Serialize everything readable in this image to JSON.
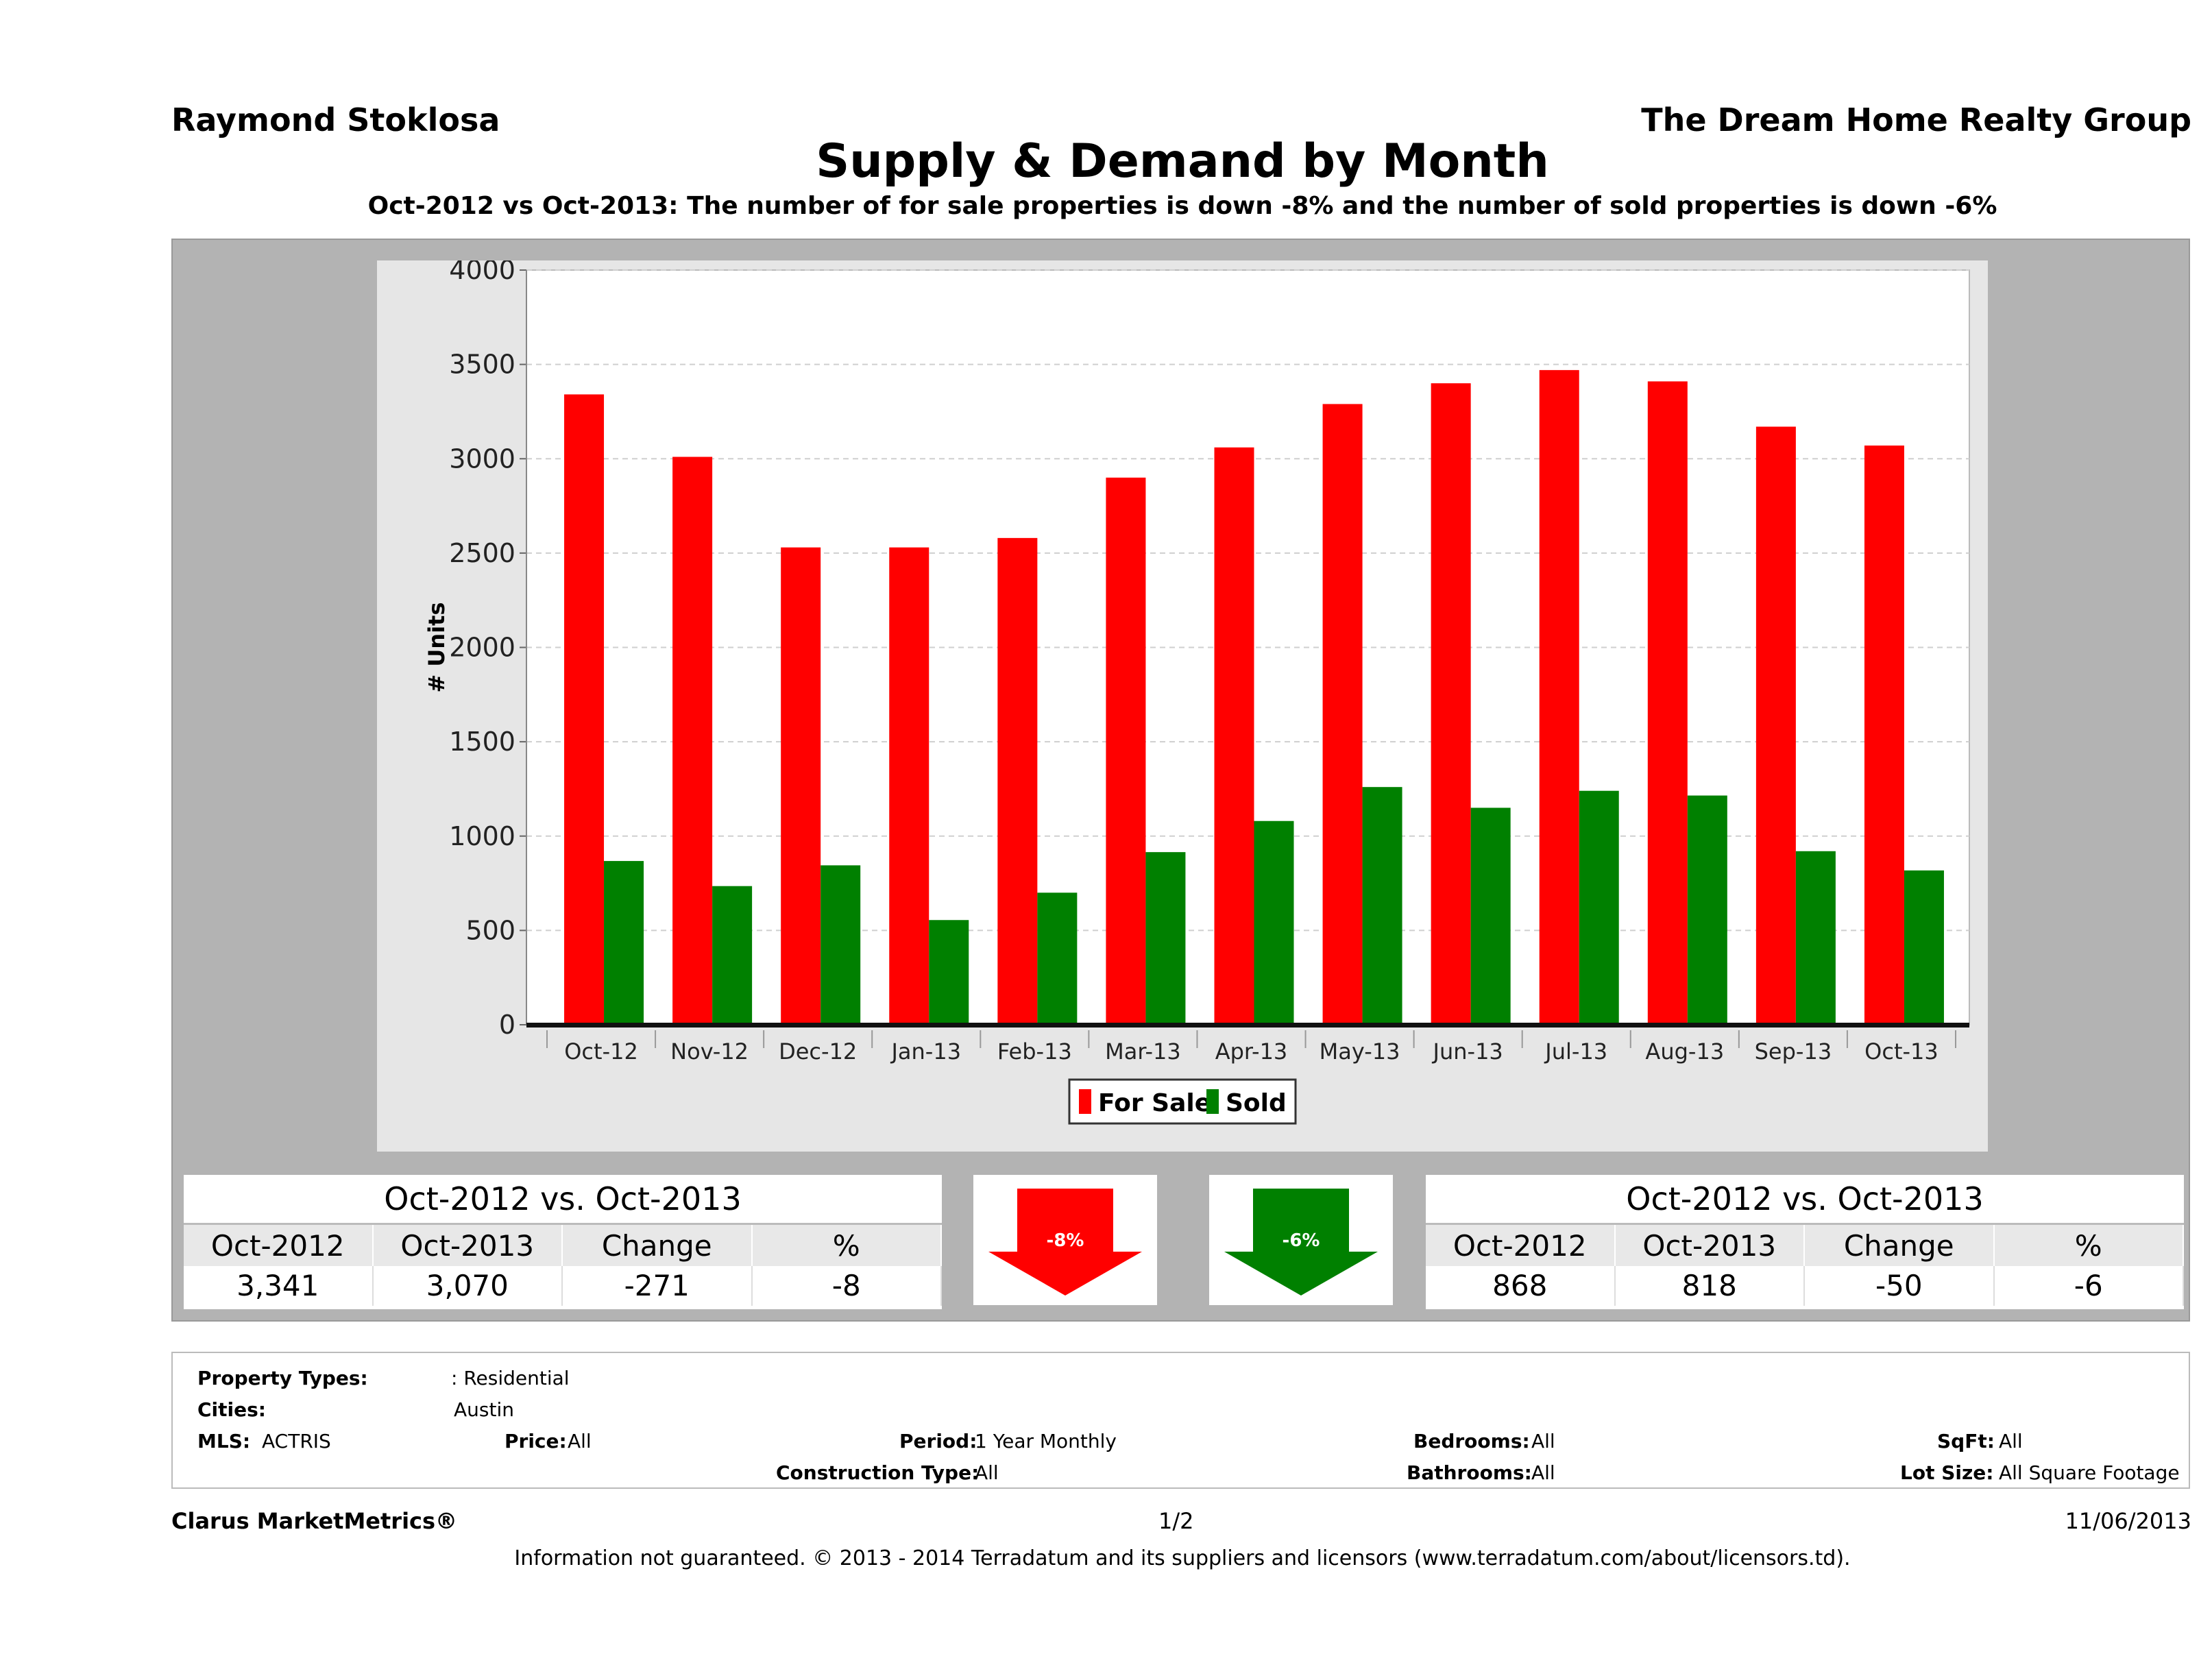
{
  "header": {
    "agent": "Raymond Stoklosa",
    "company": "The Dream Home Realty Group",
    "title": "Supply & Demand by Month",
    "subtitle": "Oct-2012 vs Oct-2013: The number of for sale properties is down -8% and the number of sold properties is down -6%"
  },
  "chart_data": {
    "type": "bar",
    "categories": [
      "Oct-12",
      "Nov-12",
      "Dec-12",
      "Jan-13",
      "Feb-13",
      "Mar-13",
      "Apr-13",
      "May-13",
      "Jun-13",
      "Jul-13",
      "Aug-13",
      "Sep-13",
      "Oct-13"
    ],
    "series": [
      {
        "name": "For Sale",
        "color": "#ff0000",
        "values": [
          3341,
          3010,
          2530,
          2530,
          2580,
          2900,
          3060,
          3290,
          3400,
          3470,
          3410,
          3170,
          3070
        ]
      },
      {
        "name": "Sold",
        "color": "#008000",
        "values": [
          868,
          735,
          845,
          555,
          700,
          915,
          1080,
          1260,
          1150,
          1240,
          1215,
          920,
          818
        ]
      }
    ],
    "ylabel": "# Units",
    "ylim": [
      0,
      4000
    ],
    "yticks": [
      0,
      500,
      1000,
      1500,
      2000,
      2500,
      3000,
      3500,
      4000
    ],
    "grid": true,
    "legend_position": "bottom"
  },
  "stats_left": {
    "header": "Oct-2012 vs. Oct-2013",
    "labels": [
      "Oct-2012",
      "Oct-2013",
      "Change",
      "%"
    ],
    "values": [
      "3,341",
      "3,070",
      "-271",
      "-8"
    ],
    "arrow_label": "-8%",
    "arrow_color": "#ff0000"
  },
  "stats_right": {
    "header": "Oct-2012 vs. Oct-2013",
    "labels": [
      "Oct-2012",
      "Oct-2013",
      "Change",
      "%"
    ],
    "values": [
      "868",
      "818",
      "-50",
      "-6"
    ],
    "arrow_label": "-6%",
    "arrow_color": "#008000"
  },
  "info": {
    "property_types_label": "Property Types:",
    "property_types_value": ": Residential",
    "cities_label": "Cities:",
    "cities_value": "Austin",
    "mls_label": "MLS:",
    "mls_value": "ACTRIS",
    "price_label": "Price:",
    "price_value": "All",
    "period_label": "Period:",
    "period_value": "1 Year Monthly",
    "bedrooms_label": "Bedrooms:",
    "bedrooms_value": "All",
    "sqft_label": "SqFt:",
    "sqft_value": "All",
    "construction_label": "Construction Type:",
    "construction_value": "All",
    "bathrooms_label": "Bathrooms:",
    "bathrooms_value": "All",
    "lot_label": "Lot Size:",
    "lot_value": "All Square Footage"
  },
  "footer": {
    "brand": "Clarus MarketMetrics®",
    "page": "1/2",
    "date": "11/06/2013",
    "disclaimer": "Information not guaranteed. © 2013 - 2014 Terradatum and its suppliers and licensors (www.terradatum.com/about/licensors.td)."
  }
}
